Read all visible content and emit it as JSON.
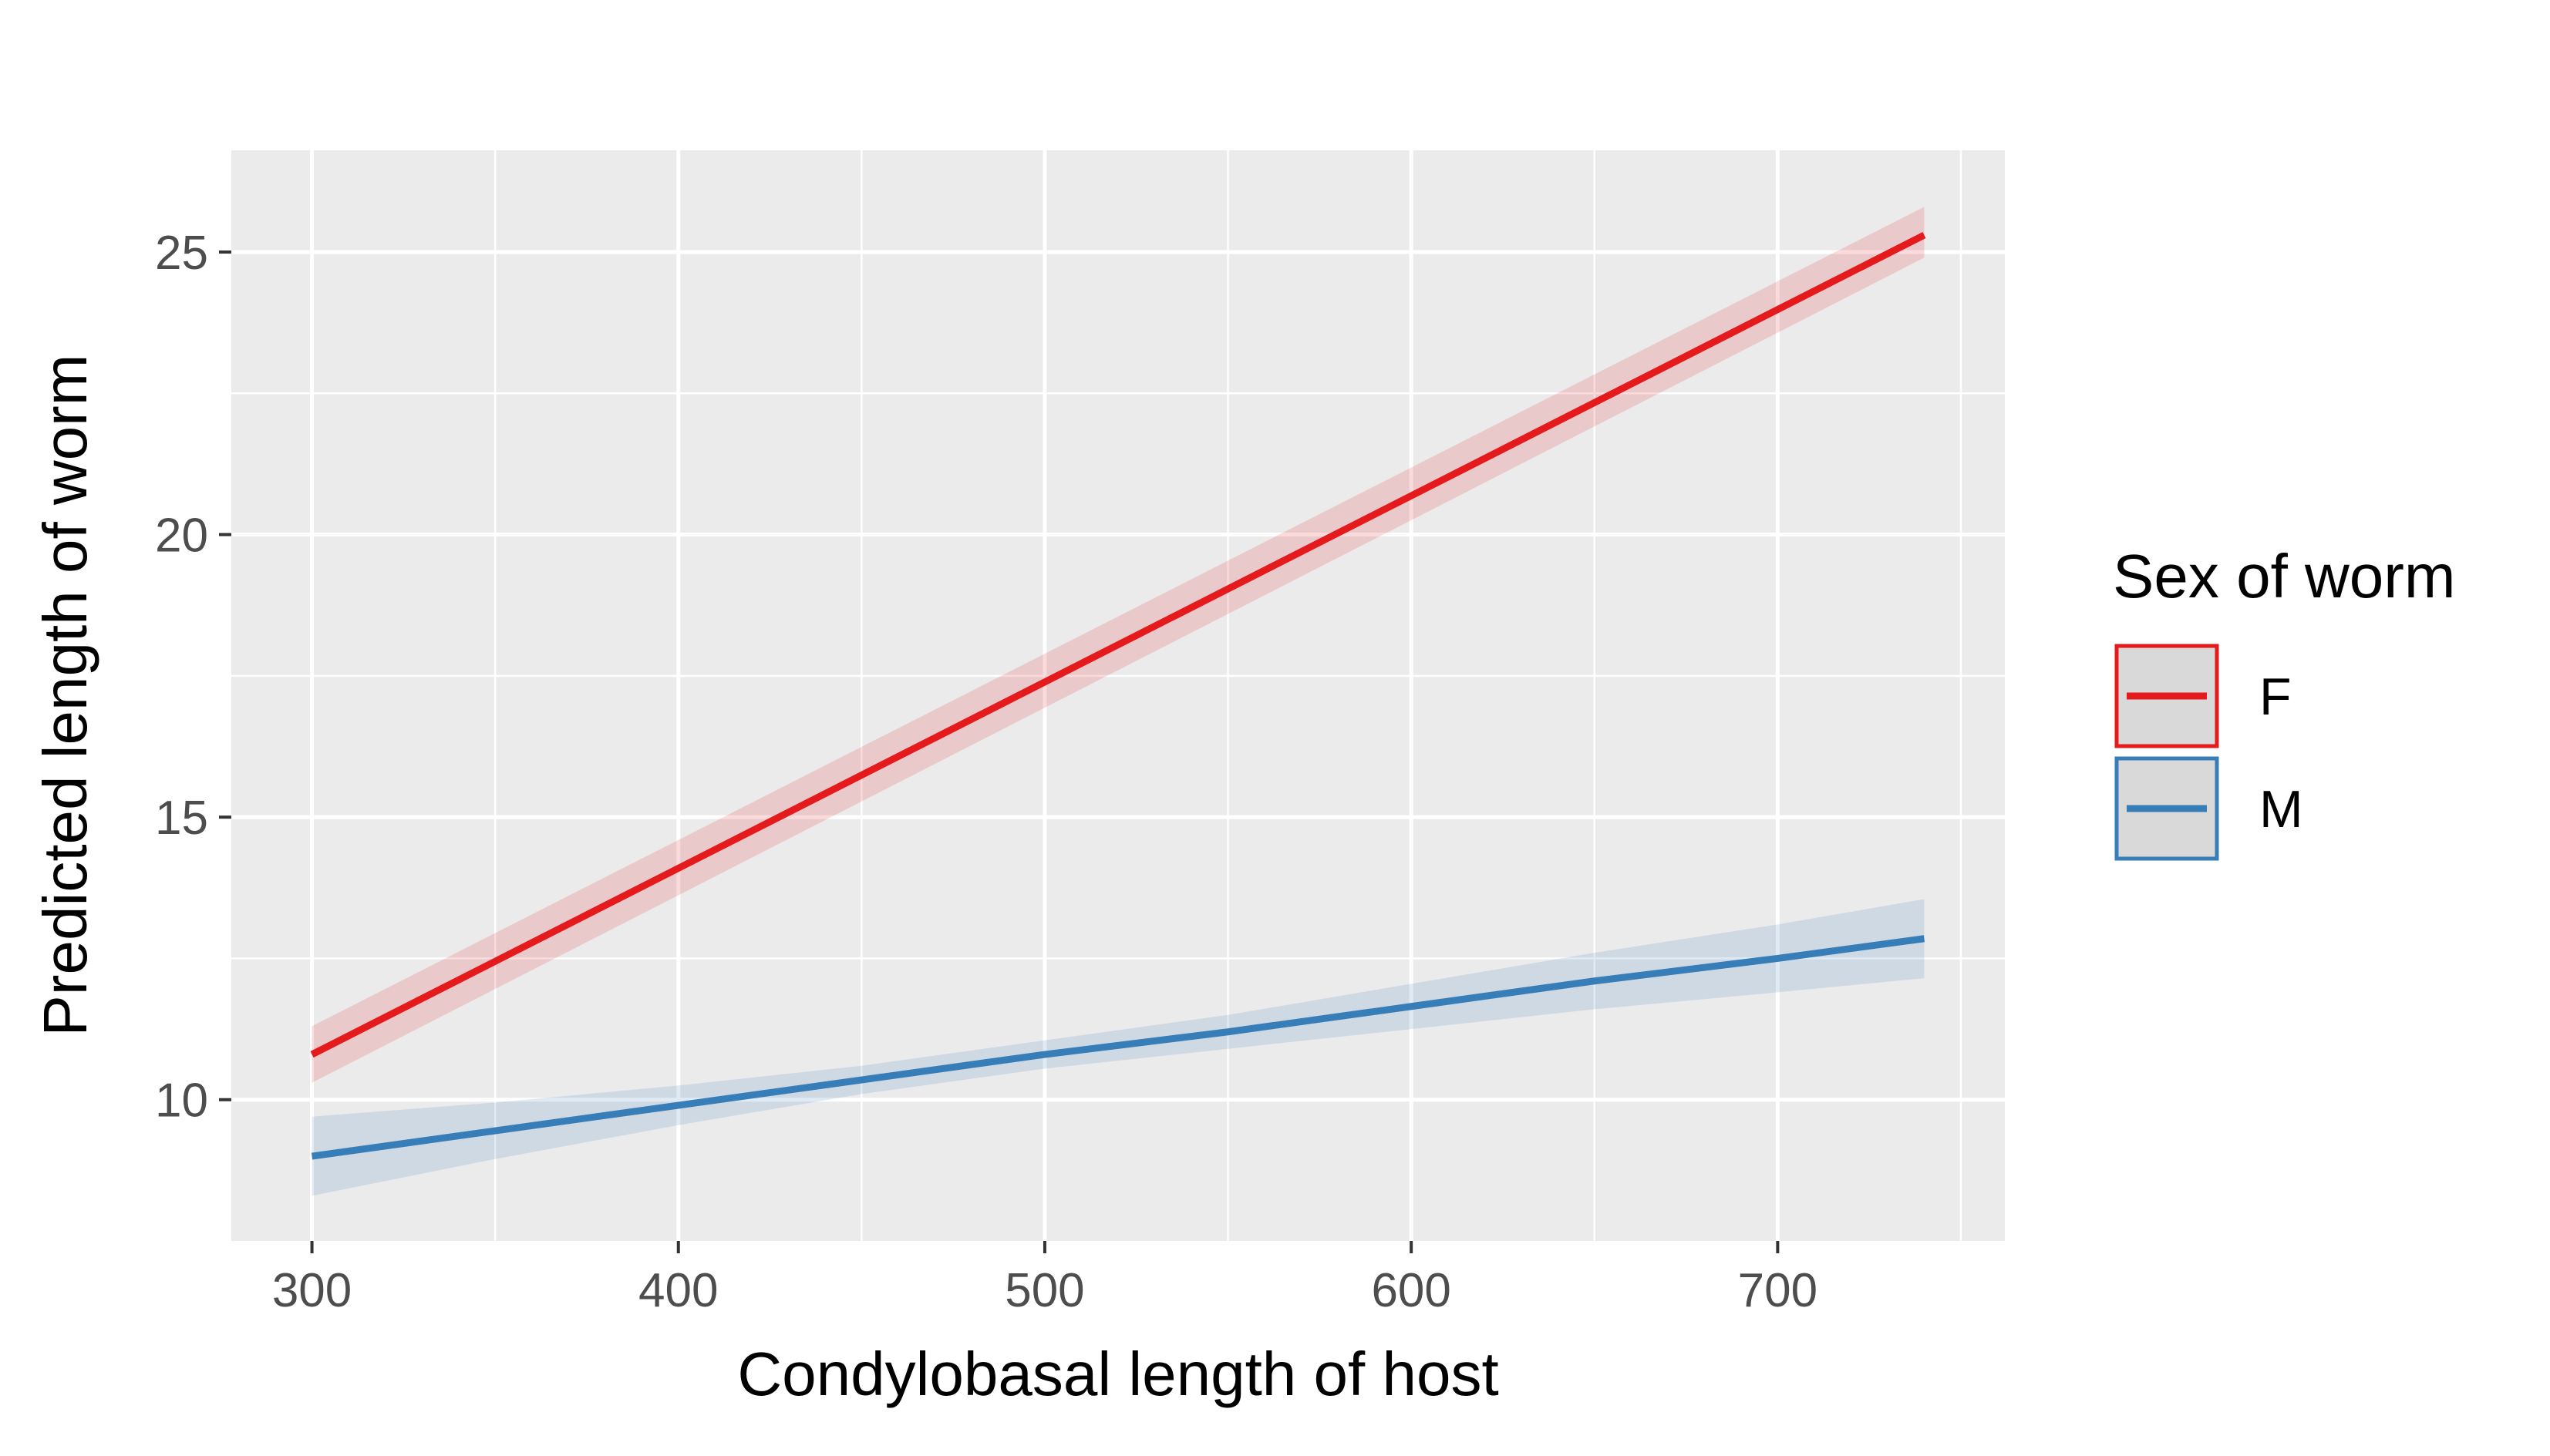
{
  "chart_data": {
    "type": "line",
    "title": "",
    "xlabel": "Condylobasal length of host",
    "ylabel": "Predicted length of worm",
    "xlim": [
      278,
      762
    ],
    "ylim": [
      7.5,
      26.8
    ],
    "xticks": [
      300,
      400,
      500,
      600,
      700
    ],
    "yticks": [
      10,
      15,
      20,
      25
    ],
    "grid": true,
    "legend": {
      "title": "Sex of worm",
      "placement": "right"
    },
    "series": [
      {
        "name": "F",
        "color": "#e41a1c",
        "x": [
          300,
          740
        ],
        "y": [
          10.8,
          25.3
        ],
        "ci_lower": [
          10.3,
          24.9
        ],
        "ci_upper": [
          11.3,
          25.8
        ]
      },
      {
        "name": "M",
        "color": "#377eb8",
        "x": [
          300,
          350,
          400,
          450,
          500,
          550,
          600,
          650,
          700,
          740
        ],
        "y": [
          9.0,
          9.45,
          9.9,
          10.35,
          10.8,
          11.2,
          11.65,
          12.1,
          12.5,
          12.85
        ],
        "ci_lower": [
          8.3,
          8.95,
          9.55,
          10.1,
          10.55,
          10.9,
          11.25,
          11.6,
          11.9,
          12.15
        ],
        "ci_upper": [
          9.7,
          9.95,
          10.25,
          10.6,
          11.05,
          11.5,
          12.05,
          12.6,
          13.1,
          13.55
        ]
      }
    ]
  }
}
